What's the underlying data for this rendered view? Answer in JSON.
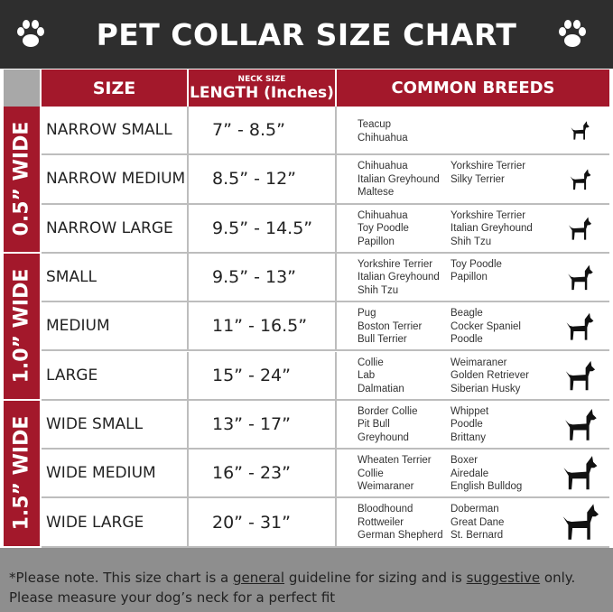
{
  "header": {
    "title": "PET COLLAR SIZE CHART"
  },
  "columns": {
    "size": "SIZE",
    "length_small": "NECK SIZE",
    "length": "LENGTH (Inches)",
    "breeds": "COMMON BREEDS"
  },
  "groups": [
    {
      "label": "0.5” WIDE",
      "rows": [
        {
          "size": "NARROW SMALL",
          "length": "7” - 8.5”",
          "breeds": [
            [
              "Teacup",
              "Chihuahua"
            ]
          ]
        },
        {
          "size": "NARROW MEDIUM",
          "length": "8.5” - 12”",
          "breeds": [
            [
              "Chihuahua",
              "Italian Greyhound",
              "Maltese"
            ],
            [
              "Yorkshire Terrier",
              "Silky Terrier"
            ]
          ]
        },
        {
          "size": "NARROW LARGE",
          "length": "9.5” - 14.5”",
          "breeds": [
            [
              "Chihuahua",
              "Toy Poodle",
              "Papillon"
            ],
            [
              "Yorkshire Terrier",
              "Italian Greyhound",
              "Shih Tzu"
            ]
          ]
        }
      ]
    },
    {
      "label": "1.0” WIDE",
      "rows": [
        {
          "size": "SMALL",
          "length": "9.5” - 13”",
          "breeds": [
            [
              "Yorkshire Terrier",
              "Italian Greyhound",
              "Shih Tzu"
            ],
            [
              "Toy Poodle",
              "Papillon"
            ]
          ]
        },
        {
          "size": "MEDIUM",
          "length": "11” - 16.5”",
          "breeds": [
            [
              "Pug",
              "Boston Terrier",
              "Bull Terrier"
            ],
            [
              "Beagle",
              "Cocker Spaniel",
              "Poodle"
            ]
          ]
        },
        {
          "size": "LARGE",
          "length": "15” - 24”",
          "breeds": [
            [
              "Collie",
              "Lab",
              "Dalmatian"
            ],
            [
              "Weimaraner",
              "Golden Retriever",
              "Siberian Husky"
            ]
          ]
        }
      ]
    },
    {
      "label": "1.5” WIDE",
      "rows": [
        {
          "size": "WIDE SMALL",
          "length": "13” - 17”",
          "breeds": [
            [
              "Border Collie",
              "Pit Bull",
              "Greyhound"
            ],
            [
              "Whippet",
              "Poodle",
              "Brittany"
            ]
          ]
        },
        {
          "size": "WIDE MEDIUM",
          "length": "16” - 23”",
          "breeds": [
            [
              "Wheaten Terrier",
              "Collie",
              "Weimaraner"
            ],
            [
              "Boxer",
              "Airedale",
              "English Bulldog"
            ]
          ]
        },
        {
          "size": "WIDE LARGE",
          "length": "20” - 31”",
          "breeds": [
            [
              "Bloodhound",
              "Rottweiler",
              "German Shepherd"
            ],
            [
              "Doberman",
              "Great Dane",
              "St. Bernard"
            ]
          ]
        }
      ]
    }
  ],
  "footer": {
    "line1": [
      "*Please note. This size chart is a ",
      "general",
      " guideline for sizing and is ",
      "suggestive",
      " only."
    ],
    "line2": "Please measure your dog’s neck for a perfect fit"
  }
}
